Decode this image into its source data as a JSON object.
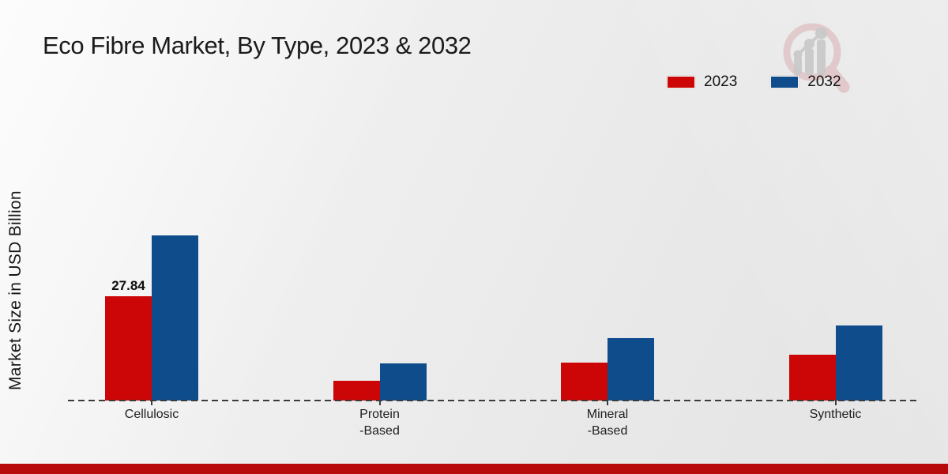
{
  "header": {
    "title": "Eco Fibre Market, By Type, 2023 & 2032",
    "logo_icon": "magnifier-growth-chart"
  },
  "legend": {
    "items": [
      {
        "label": "2023",
        "color": "#cc0606"
      },
      {
        "label": "2032",
        "color": "#0f4c8c"
      }
    ]
  },
  "footer": {
    "accent_color": "#b80a0a"
  },
  "chart_data": {
    "type": "bar",
    "title": "Eco Fibre Market, By Type, 2023 & 2032",
    "xlabel": "",
    "ylabel": "Market Size in USD Billion",
    "categories": [
      "Cellulosic",
      "Protein-Based",
      "Mineral-Based",
      "Synthetic"
    ],
    "category_label_lines": [
      [
        "Cellulosic"
      ],
      [
        "Protein",
        "-Based"
      ],
      [
        "Mineral",
        "-Based"
      ],
      [
        "Synthetic"
      ]
    ],
    "series": [
      {
        "name": "2023",
        "color": "#cc0606",
        "values": [
          27.84,
          5.3,
          10.1,
          12.2
        ],
        "value_labels": [
          "27.84",
          "",
          "",
          ""
        ]
      },
      {
        "name": "2032",
        "color": "#0f4c8c",
        "values": [
          44.1,
          9.9,
          16.7,
          20.0
        ],
        "value_labels": [
          "",
          "",
          "",
          ""
        ]
      }
    ],
    "ylim": [
      0,
      45
    ],
    "grid": false,
    "legend_position": "top-right",
    "baseline_style": "dashed"
  }
}
